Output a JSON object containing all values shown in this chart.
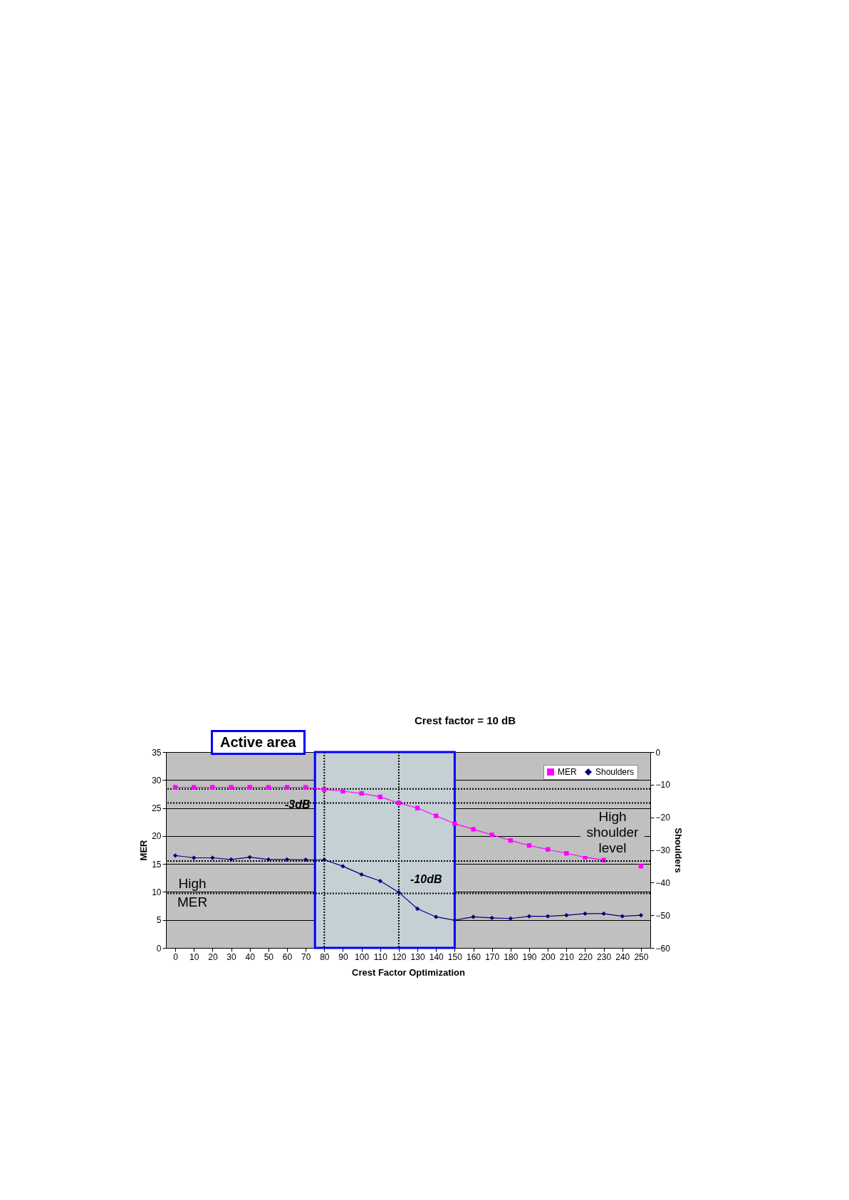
{
  "chart_data": {
    "type": "line",
    "title": "Crest factor = 10 dB",
    "xlabel": "Crest Factor Optimization",
    "ylabel": "MER",
    "y2label": "Shoulders",
    "x": [
      0,
      10,
      20,
      30,
      40,
      50,
      60,
      70,
      80,
      90,
      100,
      110,
      120,
      130,
      140,
      150,
      160,
      170,
      180,
      190,
      200,
      210,
      220,
      230,
      240,
      250
    ],
    "xlim": [
      -5,
      255
    ],
    "xticks": [
      0,
      10,
      20,
      30,
      40,
      50,
      60,
      70,
      80,
      90,
      100,
      110,
      120,
      130,
      140,
      150,
      160,
      170,
      180,
      190,
      200,
      210,
      220,
      230,
      240,
      250
    ],
    "ylim": [
      0,
      35
    ],
    "yticks": [
      0,
      5,
      10,
      15,
      20,
      25,
      30,
      35
    ],
    "y2lim": [
      -60,
      0
    ],
    "y2ticks": [
      -60,
      -50,
      -40,
      -30,
      -20,
      -10,
      0
    ],
    "series": [
      {
        "name": "MER",
        "color": "#ff00ff",
        "marker": "square",
        "values": [
          28.7,
          28.7,
          28.7,
          28.7,
          28.7,
          28.7,
          28.7,
          28.7,
          28.3,
          28.0,
          27.6,
          27.0,
          25.9,
          25.0,
          23.6,
          22.2,
          21.2,
          20.2,
          19.2,
          18.3,
          17.6,
          16.9,
          16.2,
          15.7,
          null,
          14.6
        ]
      },
      {
        "name": "Shoulders",
        "color": "#000080",
        "marker": "diamond",
        "axis": "y2",
        "values": [
          -31.7,
          -32.4,
          -32.4,
          -32.9,
          -32.2,
          -32.9,
          -32.9,
          -33,
          -33,
          -35,
          -37.5,
          -39.5,
          -43,
          -48,
          -50.5,
          -51.5,
          -50.5,
          -50.8,
          -51,
          -50.3,
          -50.3,
          -50,
          -49.5,
          -49.5,
          -50.3,
          -50
        ]
      }
    ],
    "bands": [
      {
        "axis": "x",
        "from": 75,
        "to": 150,
        "label": "Active area",
        "color": "#c5d0d4"
      }
    ],
    "ref_lines": [
      {
        "axis": "y",
        "value": 28.4,
        "line_style": "dotted"
      },
      {
        "axis": "y",
        "value": 25.9,
        "line_style": "dotted"
      },
      {
        "axis": "y2",
        "value": -33.4,
        "line_style": "dotted"
      },
      {
        "axis": "y2",
        "value": -43.3,
        "line_style": "dotted"
      },
      {
        "axis": "x",
        "value": 80,
        "line_style": "dotted"
      },
      {
        "axis": "x",
        "value": 120,
        "line_style": "dotted"
      }
    ],
    "annotations": [
      "-3dB",
      "-10dB",
      "High MER",
      "High shoulder level"
    ],
    "grid": "y",
    "legend": "top right"
  }
}
